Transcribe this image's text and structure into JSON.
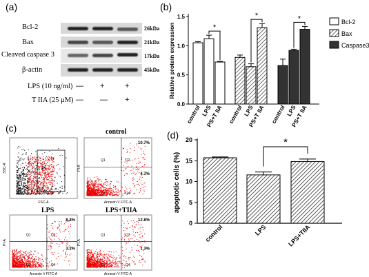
{
  "panels": {
    "a": "(a)",
    "b": "(b)",
    "c": "(c)",
    "d": "(d)"
  },
  "western_blot": {
    "rows": [
      {
        "label": "Bcl-2",
        "kda": "26kDa"
      },
      {
        "label": "Bax",
        "kda": "21kDa"
      },
      {
        "label": "Cleaved caspase 3",
        "kda": "17kDa"
      },
      {
        "label": "β-actin",
        "kda": "45kDa"
      }
    ],
    "treatments": [
      {
        "label": "LPS (10 ng/ml)",
        "signs": [
          "—",
          "+",
          "+"
        ]
      },
      {
        "label": "T IIA (25 μM)",
        "signs": [
          "—",
          "—",
          "+"
        ]
      }
    ]
  },
  "chart_data": [
    {
      "type": "bar",
      "ylabel": "Relative protein expression",
      "ylim": [
        0,
        1.5
      ],
      "yticks": [
        "0.0",
        "0.5",
        "1.0",
        "1.5"
      ],
      "categories": [
        "control",
        "LPS",
        "LPS+T IIA"
      ],
      "series": [
        {
          "name": "Bcl-2",
          "values": [
            1.05,
            1.12,
            0.72
          ],
          "errors": [
            0.02,
            0.06,
            0.01
          ],
          "color": "#ffffff",
          "pattern": "none"
        },
        {
          "name": "Bax",
          "values": [
            0.8,
            0.64,
            1.31
          ],
          "errors": [
            0.04,
            0.05,
            0.07
          ],
          "color": "#ffffff",
          "pattern": "hatch"
        },
        {
          "name": "Caspase3",
          "values": [
            0.66,
            0.92,
            1.28
          ],
          "errors": [
            0.11,
            0.02,
            0.05
          ],
          "color": "#333333",
          "pattern": "solid"
        }
      ],
      "significance": "*",
      "legend": "right"
    },
    {
      "type": "bar",
      "ylabel": "apoptotic cells (%)",
      "ylim": [
        0,
        20
      ],
      "yticks": [
        "0",
        "5",
        "10",
        "15",
        "20"
      ],
      "categories": [
        "control",
        "LPS",
        "LPS+TIIA"
      ],
      "values": [
        15.7,
        11.6,
        14.8
      ],
      "errors": [
        0.2,
        0.7,
        0.6
      ],
      "significance": "*"
    }
  ],
  "flow": {
    "plots": [
      {
        "title": "",
        "q2": "",
        "q4": "",
        "gate": "P1",
        "ylabel": "SSC-A",
        "xlabel": "FSC-A"
      },
      {
        "title": "control",
        "q2": "10.7%",
        "q4": "4.7%",
        "ylabel": "PI-A",
        "xlabel": "Annexin V FITC-A"
      },
      {
        "title": "LPS",
        "q2": "8.4%",
        "q4": "3.2%",
        "ylabel": "PI-A",
        "xlabel": "Annexin V FITC-A"
      },
      {
        "title": "LPS+TIIA",
        "q2": "12.8%",
        "q4": "1.3%",
        "ylabel": "PI-A",
        "xlabel": "Annexin V FITC-A"
      }
    ],
    "quadrants": [
      "Q1",
      "Q2",
      "Q3",
      "Q4"
    ]
  }
}
